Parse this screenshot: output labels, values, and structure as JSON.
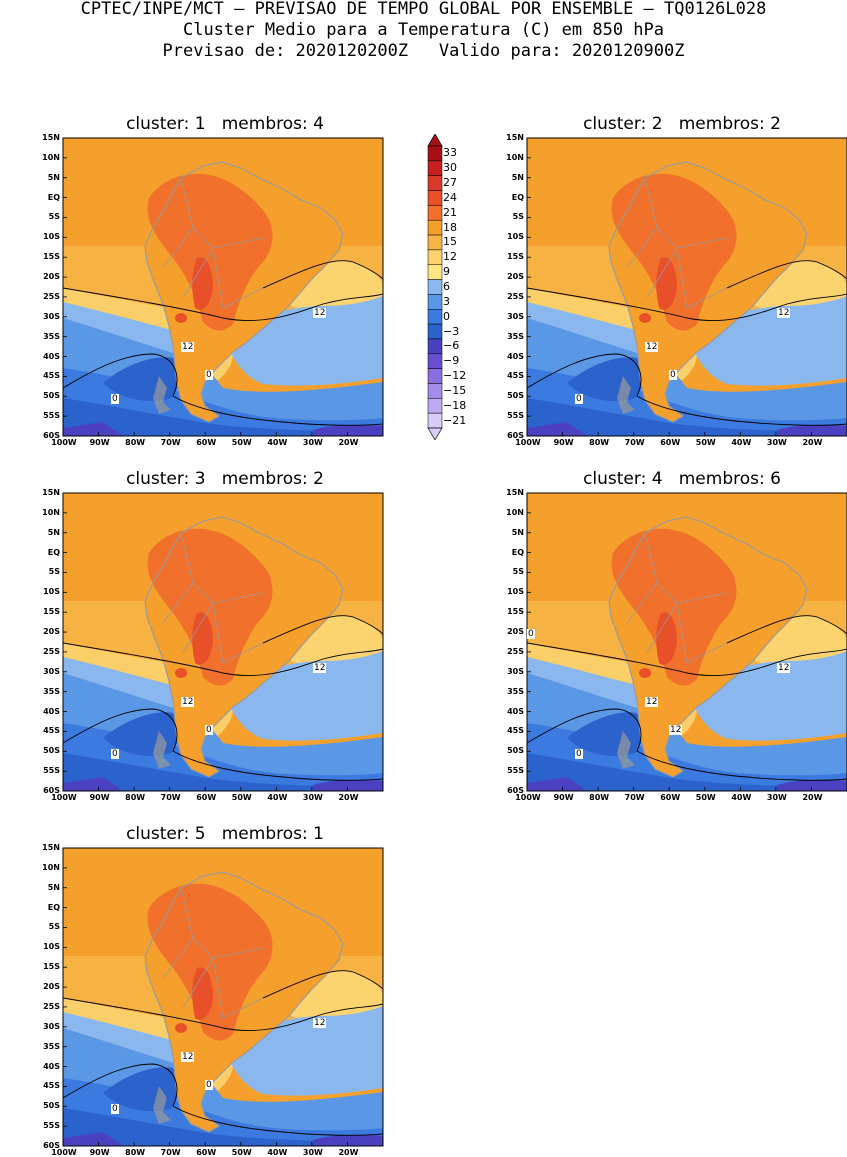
{
  "header": {
    "line1": "CPTEC/INPE/MCT – PREVISAO DE TEMPO GLOBAL POR ENSEMBLE – TQ0126L028",
    "line2": "Cluster Medio para a Temperatura (C) em 850 hPa",
    "line3": "Previsao de: 2020120200Z   Valido para: 2020120900Z"
  },
  "colors": {
    "t33": "#a50f15",
    "t30": "#c8201f",
    "t27": "#d93a2b",
    "t24": "#e8502a",
    "t21": "#f0702c",
    "t18": "#f5a02c",
    "t15": "#f7b447",
    "t12": "#fbd36f",
    "t9": "#fde584",
    "t6": "#8ab8ee",
    "t3": "#5a98e6",
    "t0": "#3b7ade",
    "tm3": "#2b62cc",
    "tm6": "#4a40c0",
    "tm9": "#6a4ed0",
    "tm12": "#8a6ee0",
    "tm15": "#a38cea",
    "tm18": "#bdaaf2",
    "tm21": "#d8ccf8",
    "coast": "#9a9a9a",
    "contour": "#000000"
  },
  "colorbar": {
    "labels": [
      "33",
      "30",
      "27",
      "24",
      "21",
      "18",
      "15",
      "12",
      "9",
      "6",
      "3",
      "0",
      "−3",
      "−6",
      "−9",
      "−12",
      "−15",
      "−18",
      "−21"
    ]
  },
  "lat_labels": [
    "15N",
    "10N",
    "5N",
    "EQ",
    "5S",
    "10S",
    "15S",
    "20S",
    "25S",
    "30S",
    "35S",
    "40S",
    "45S",
    "50S",
    "55S",
    "60S"
  ],
  "lon_labels": [
    "100W",
    "90W",
    "80W",
    "70W",
    "60W",
    "50W",
    "40W",
    "30W",
    "20W"
  ],
  "panels": [
    {
      "title": "cluster: 1   membros: 4",
      "labels": [
        "12",
        "12",
        "0",
        "0"
      ]
    },
    {
      "title": "cluster: 2   membros: 2",
      "labels": [
        "12",
        "12",
        "0",
        "0"
      ]
    },
    {
      "title": "cluster: 3   membros: 2",
      "labels": [
        "12",
        "12",
        "0",
        "0"
      ]
    },
    {
      "title": "cluster: 4   membros: 6",
      "labels": [
        "12",
        "12",
        "12",
        "0",
        "0"
      ]
    },
    {
      "title": "cluster: 5   membros: 1",
      "labels": [
        "12",
        "12",
        "0",
        "0"
      ]
    }
  ]
}
